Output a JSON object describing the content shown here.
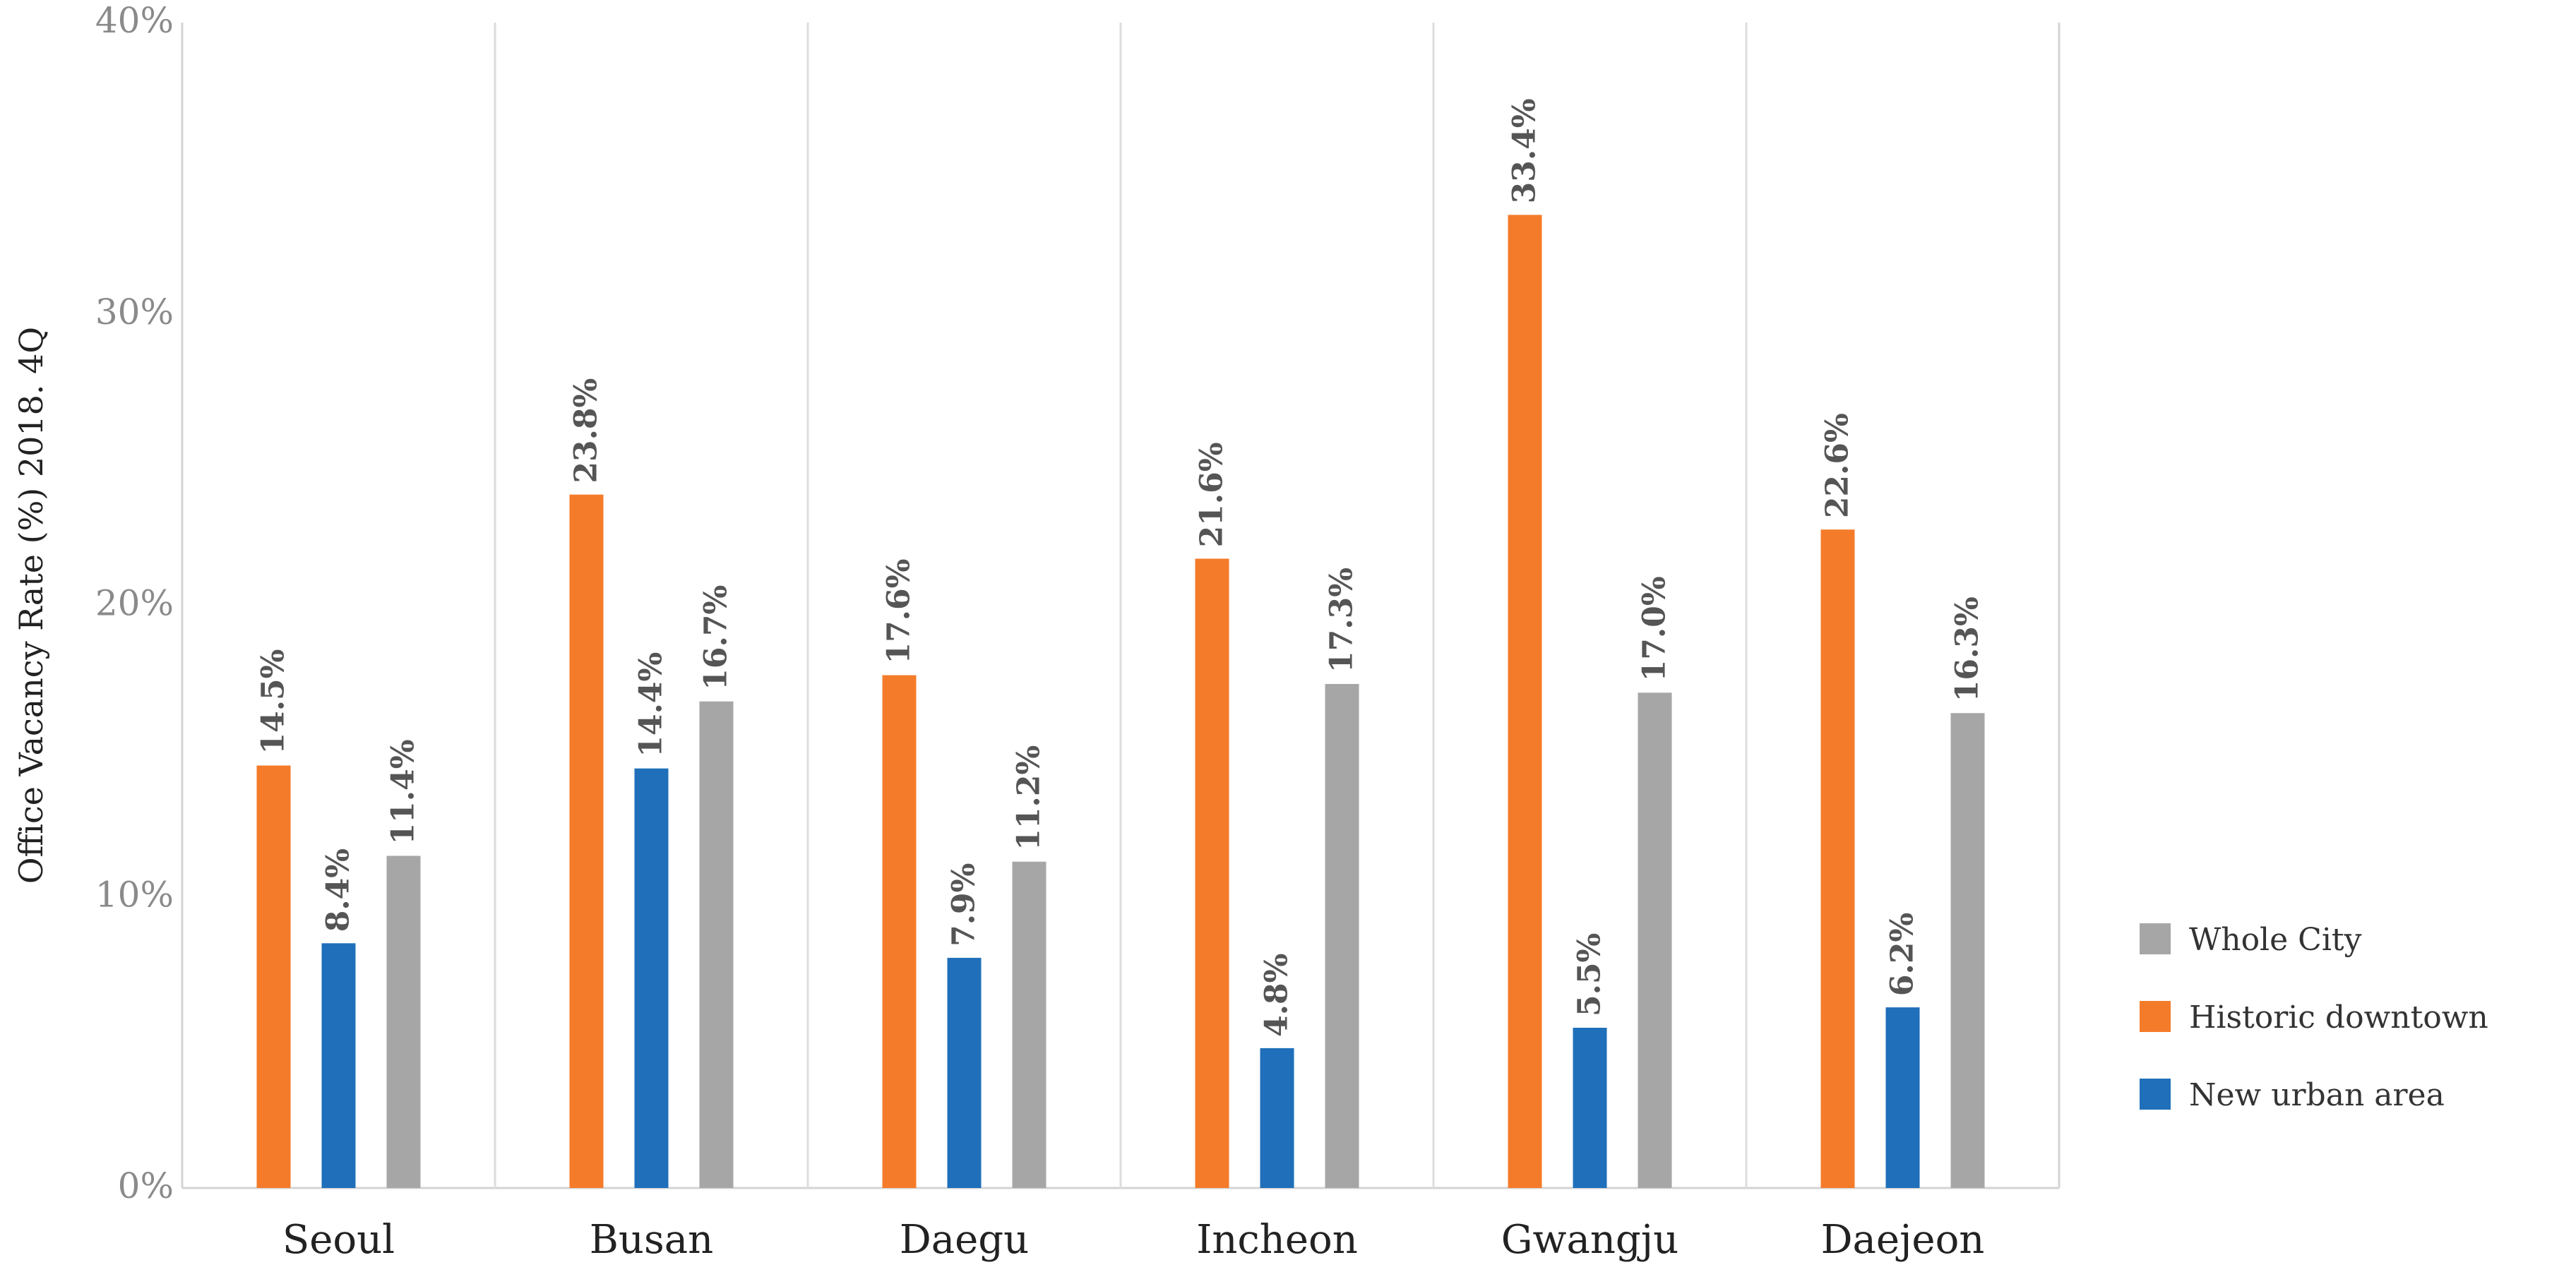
{
  "chart_data": {
    "type": "bar",
    "ylabel": "Office Vacancy Rate (%)  2018. 4Q",
    "ylim": [
      0,
      40
    ],
    "yticks": [
      "0%",
      "10%",
      "20%",
      "30%",
      "40%"
    ],
    "categories": [
      "Seoul",
      "Busan",
      "Daegu",
      "Incheon",
      "Gwangju",
      "Daejeon"
    ],
    "series": [
      {
        "name": "Historic downtown",
        "color": "#f47b2a",
        "values": [
          14.5,
          23.8,
          17.6,
          21.6,
          33.4,
          22.6
        ],
        "labels": [
          "14.5%",
          "23.8%",
          "17.6%",
          "21.6%",
          "33.4%",
          "22.6%"
        ]
      },
      {
        "name": "New urban area",
        "color": "#1f6fba",
        "values": [
          8.4,
          14.4,
          7.9,
          4.8,
          5.5,
          6.2
        ],
        "labels": [
          "8.4%",
          "14.4%",
          "7.9%",
          "4.8%",
          "5.5%",
          "6.2%"
        ]
      },
      {
        "name": "Whole City",
        "color": "#a6a6a6",
        "values": [
          11.4,
          16.7,
          11.2,
          17.3,
          17.0,
          16.3
        ],
        "labels": [
          "11.4%",
          "16.7%",
          "11.2%",
          "17.3%",
          "17.0%",
          "16.3%"
        ]
      }
    ],
    "legend": {
      "position": "right",
      "items": [
        "Whole City",
        "Historic downtown",
        "New urban area"
      ]
    }
  }
}
